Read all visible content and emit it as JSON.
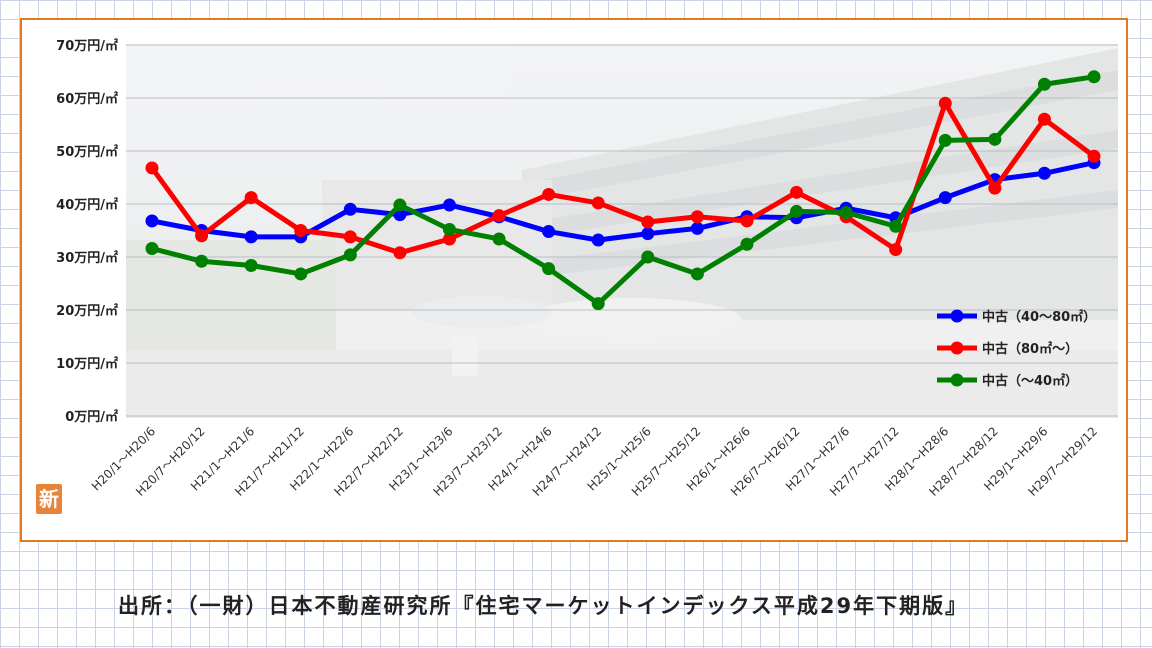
{
  "chart_data": {
    "type": "line",
    "y_unit_suffix": "万円/㎡",
    "ylim": [
      0,
      70
    ],
    "yticks": [
      0,
      10,
      20,
      30,
      40,
      50,
      60,
      70
    ],
    "categories": [
      "H20/1～H20/6",
      "H20/7～H20/12",
      "H21/1～H21/6",
      "H21/7～H21/12",
      "H22/1～H22/6",
      "H22/7～H22/12",
      "H23/1～H23/6",
      "H23/7～H23/12",
      "H24/1～H24/6",
      "H24/7～H24/12",
      "H25/1～H25/6",
      "H25/7～H25/12",
      "H26/1～H26/6",
      "H26/7～H26/12",
      "H27/1～H27/6",
      "H27/7～H27/12",
      "H28/1～H28/6",
      "H28/7～H28/12",
      "H29/1～H29/6",
      "H29/7～H29/12"
    ],
    "series": [
      {
        "name": "中古（40～80㎡）",
        "color": "#0000ff",
        "values": [
          36.8,
          35.0,
          33.8,
          33.8,
          39.0,
          38.0,
          39.8,
          37.6,
          34.8,
          33.2,
          34.4,
          35.4,
          37.6,
          37.4,
          39.2,
          37.4,
          41.2,
          44.6,
          45.8,
          47.8
        ]
      },
      {
        "name": "中古（80㎡～）",
        "color": "#ff0000",
        "values": [
          46.8,
          34.0,
          41.2,
          35.0,
          33.8,
          30.8,
          33.4,
          37.8,
          41.8,
          40.2,
          36.6,
          37.6,
          36.8,
          42.2,
          37.6,
          31.4,
          59.0,
          43.0,
          56.0,
          49.0
        ]
      },
      {
        "name": "中古（～40㎡）",
        "color": "#008000",
        "values": [
          31.6,
          29.2,
          28.4,
          26.8,
          30.4,
          39.8,
          35.2,
          33.4,
          27.8,
          21.2,
          30.0,
          26.8,
          32.4,
          38.6,
          38.4,
          35.8,
          52.0,
          52.2,
          62.6,
          64.0
        ]
      }
    ],
    "legend_position": "bottom-right",
    "grid": true
  },
  "source": "出所：（一財）日本不動産研究所『住宅マーケットインデックス平成29年下期版』",
  "logo_glyph": "新"
}
